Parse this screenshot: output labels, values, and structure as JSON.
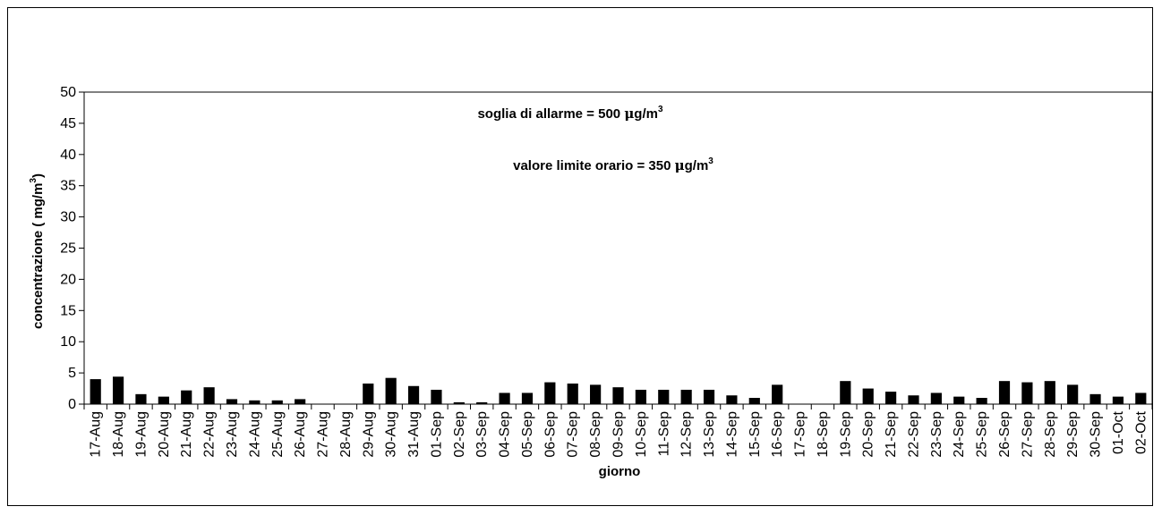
{
  "chart_data": {
    "type": "bar",
    "xlabel": "giorno",
    "ylabel": "concentrazione ( mg/m3)",
    "ylabel_parts": {
      "main": "concentrazione ( mg/m",
      "sup": "3",
      "end": ")"
    },
    "ylim": [
      0,
      50
    ],
    "yticks": [
      0,
      5,
      10,
      15,
      20,
      25,
      30,
      35,
      40,
      45,
      50
    ],
    "grid": false,
    "annotations": [
      {
        "prefix": "soglia di allarme = 500 ",
        "mu": "μ",
        "unit": "g/m",
        "sup": "3"
      },
      {
        "prefix": "valore limite orario = 350 ",
        "mu": "μ",
        "unit": "g/m",
        "sup": "3"
      }
    ],
    "categories": [
      "17-Aug",
      "18-Aug",
      "19-Aug",
      "20-Aug",
      "21-Aug",
      "22-Aug",
      "23-Aug",
      "24-Aug",
      "25-Aug",
      "26-Aug",
      "27-Aug",
      "28-Aug",
      "29-Aug",
      "30-Aug",
      "31-Aug",
      "01-Sep",
      "02-Sep",
      "03-Sep",
      "04-Sep",
      "05-Sep",
      "06-Sep",
      "07-Sep",
      "08-Sep",
      "09-Sep",
      "10-Sep",
      "11-Sep",
      "12-Sep",
      "13-Sep",
      "14-Sep",
      "15-Sep",
      "16-Sep",
      "17-Sep",
      "18-Sep",
      "19-Sep",
      "20-Sep",
      "21-Sep",
      "22-Sep",
      "23-Sep",
      "24-Sep",
      "25-Sep",
      "26-Sep",
      "27-Sep",
      "28-Sep",
      "29-Sep",
      "30-Sep",
      "01-Oct",
      "02-Oct"
    ],
    "values": [
      4.0,
      4.4,
      1.6,
      1.2,
      2.2,
      2.7,
      0.8,
      0.6,
      0.6,
      0.8,
      0,
      0,
      3.3,
      4.2,
      2.9,
      2.3,
      0.3,
      0.3,
      1.8,
      1.8,
      3.5,
      3.3,
      3.1,
      2.7,
      2.3,
      2.3,
      2.3,
      2.3,
      1.4,
      1.0,
      3.1,
      0,
      0,
      3.7,
      2.5,
      2.0,
      1.4,
      1.8,
      1.2,
      1.0,
      3.7,
      3.5,
      3.7,
      3.1,
      1.6,
      1.2,
      1.8
    ],
    "bar_color": "#000000"
  }
}
